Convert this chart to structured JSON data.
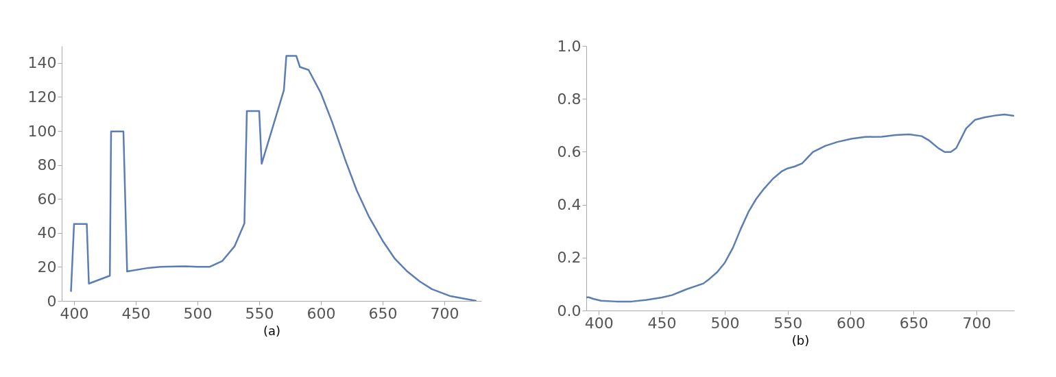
{
  "chart_data": [
    {
      "type": "line",
      "xlabel": "(a)",
      "xlim": [
        390,
        730
      ],
      "xticks": [
        400,
        450,
        500,
        550,
        600,
        650,
        700
      ],
      "ylim": [
        0,
        150
      ],
      "yticks": [
        0,
        20,
        40,
        60,
        80,
        100,
        120,
        140
      ],
      "grid": false,
      "legend": false,
      "marker": "none",
      "line_style": "solid",
      "x": [
        397.5,
        400,
        410.3,
        412,
        429,
        430,
        440,
        443,
        460,
        470,
        490,
        500,
        510,
        520,
        530,
        538,
        540,
        550,
        552,
        570,
        572,
        580,
        583,
        590,
        600,
        609,
        620,
        629,
        639,
        650,
        660,
        670,
        680,
        690,
        705,
        726
      ],
      "series": [
        {
          "color": "#5a7db3",
          "values": [
            5.4,
            45.3,
            45.3,
            10.2,
            14.8,
            99.7,
            99.7,
            17.3,
            19.4,
            20.1,
            20.4,
            20.1,
            20.1,
            23.4,
            32.1,
            45.6,
            111.7,
            111.7,
            80.7,
            123.9,
            144.2,
            144.2,
            137.6,
            135.9,
            122.2,
            105.4,
            82.4,
            65,
            49.4,
            35.4,
            24.7,
            17.3,
            11.5,
            6.9,
            2.8,
            0
          ]
        }
      ]
    },
    {
      "type": "line",
      "xlabel": "(b)",
      "xlim": [
        390,
        730
      ],
      "xticks": [
        400,
        450,
        500,
        550,
        600,
        650,
        700
      ],
      "ylim": [
        0,
        1
      ],
      "yticks": [
        {
          "value": 0,
          "label": "0.0"
        },
        0.2,
        0.4,
        0.6,
        0.8,
        {
          "value": 1,
          "label": "1.0"
        }
      ],
      "grid": false,
      "legend": false,
      "marker": "none",
      "line_style": "solid",
      "x": [
        390,
        392,
        395.6,
        401.7,
        414,
        426,
        438,
        450,
        458,
        470,
        483,
        488,
        494,
        500,
        506.6,
        512.7,
        518.8,
        524.9,
        531,
        538.3,
        545.6,
        550,
        555.4,
        561.5,
        570,
        579.8,
        589.5,
        600.5,
        611.4,
        624.8,
        635.8,
        646.7,
        656.5,
        662.6,
        669.9,
        674.8,
        679.6,
        684,
        691.8,
        699,
        706.4,
        716.1,
        722.2,
        730
      ],
      "series": [
        {
          "color": "#5a7db3",
          "values": [
            0.05,
            0.05,
            0.044,
            0.037,
            0.034,
            0.034,
            0.04,
            0.049,
            0.058,
            0.081,
            0.102,
            0.12,
            0.145,
            0.18,
            0.238,
            0.308,
            0.372,
            0.421,
            0.459,
            0.498,
            0.527,
            0.537,
            0.544,
            0.556,
            0.599,
            0.622,
            0.637,
            0.649,
            0.656,
            0.657,
            0.663,
            0.666,
            0.659,
            0.642,
            0.613,
            0.599,
            0.599,
            0.614,
            0.688,
            0.721,
            0.73,
            0.738,
            0.741,
            0.736
          ]
        }
      ]
    }
  ]
}
